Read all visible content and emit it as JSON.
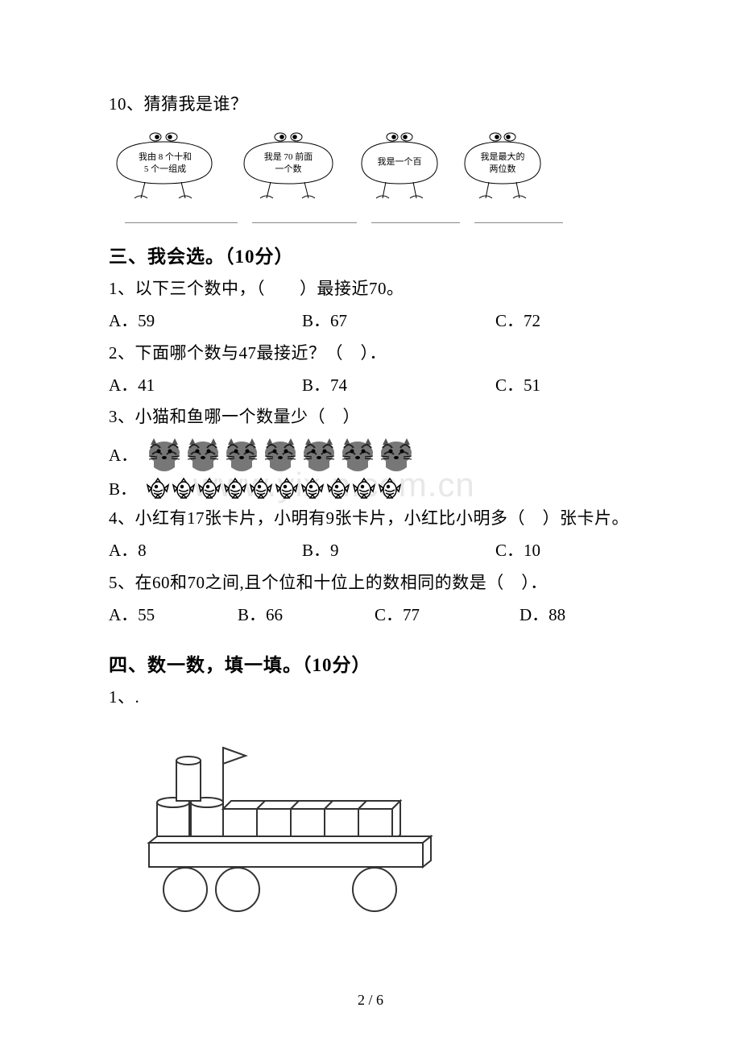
{
  "q10": {
    "prompt": "10、猜猜我是谁？",
    "cartoons": [
      {
        "line1": "我由 8 个十和",
        "line2": "5 个一组成"
      },
      {
        "line1": "我是 70 前面",
        "line2": "一个数"
      },
      {
        "line1": "我是一个百",
        "line2": ""
      },
      {
        "line1": "我是最大的",
        "line2": "两位数"
      }
    ]
  },
  "section3": {
    "title": "三、我会选。（10分）",
    "q1": {
      "text": "1、以下三个数中，（　　）最接近70。",
      "opts": [
        "A．59",
        "B．67",
        "C．72"
      ]
    },
    "q2": {
      "text": "2、下面哪个数与47最接近？（　）．",
      "opts": [
        "A．41",
        "B．74",
        "C．51"
      ]
    },
    "q3": {
      "text": "3、小猫和鱼哪一个数量少（　）",
      "labelA": "A．",
      "labelB": "B．",
      "cat_count": 7,
      "fish_count": 10
    },
    "q4": {
      "text": "4、小红有17张卡片，小明有9张卡片，小红比小明多（　）张卡片。",
      "opts": [
        "A．8",
        "B．9",
        "C．10"
      ]
    },
    "q5": {
      "text": "5、在60和70之间,且个位和十位上的数相同的数是（　）．",
      "opts": [
        "A．55",
        "B．66",
        "C．77",
        "D．88"
      ]
    }
  },
  "section4": {
    "title": "四、数一数，填一填。（10分）",
    "q1": "1、."
  },
  "watermark": "www.yix n.com.cn",
  "page": "2 / 6",
  "style": {
    "text_color": "#000000",
    "bg_color": "#ffffff",
    "body_font_size": 21,
    "heading_font_size": 23,
    "cartoon_text_size": 11,
    "watermark_color": "#e8e8e8",
    "cat_fill": "#666666",
    "cat_stripe": "#222222",
    "fish_stroke": "#000000",
    "fish_fill": "#ffffff",
    "shapes_stroke": "#333333",
    "shapes_fill": "#ffffff",
    "shapes_wheel_fill": "#ffffff"
  }
}
